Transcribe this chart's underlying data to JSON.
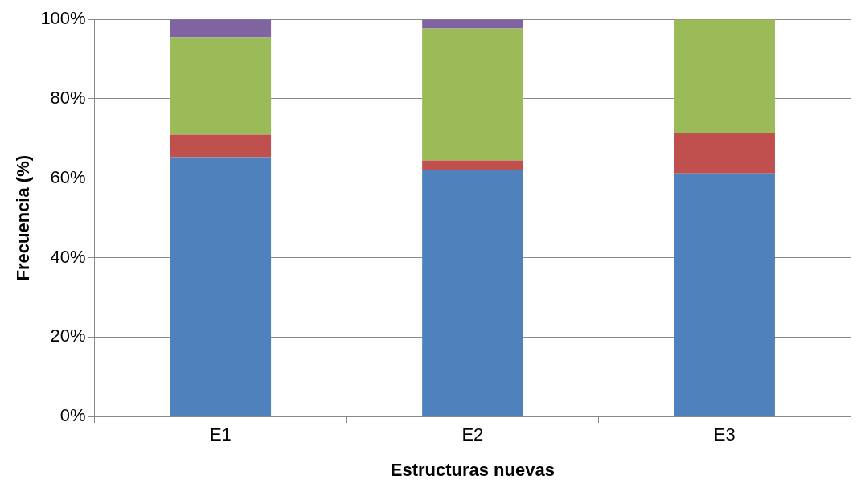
{
  "chart_data": {
    "type": "bar",
    "stacked": true,
    "xlabel": "Estructuras nuevas",
    "ylabel": "Frecuencia (%)",
    "categories": [
      "E1",
      "E2",
      "E3"
    ],
    "series": [
      {
        "color": "#4f81bd",
        "values": [
          65.3,
          62.2,
          61.2
        ]
      },
      {
        "color": "#c0504d",
        "values": [
          5.7,
          2.3,
          10.3
        ]
      },
      {
        "color": "#9bbb59",
        "values": [
          24.5,
          33.2,
          28.5
        ]
      },
      {
        "color": "#8064a2",
        "values": [
          4.5,
          2.3,
          0
        ]
      }
    ],
    "ylim": [
      0,
      100
    ],
    "yticks": [
      {
        "value": 0,
        "label": "0%"
      },
      {
        "value": 20,
        "label": "20%"
      },
      {
        "value": 40,
        "label": "40%"
      },
      {
        "value": 60,
        "label": "60%"
      },
      {
        "value": 80,
        "label": "80%"
      },
      {
        "value": 100,
        "label": "100%"
      }
    ],
    "grid": "y",
    "legend": false
  }
}
